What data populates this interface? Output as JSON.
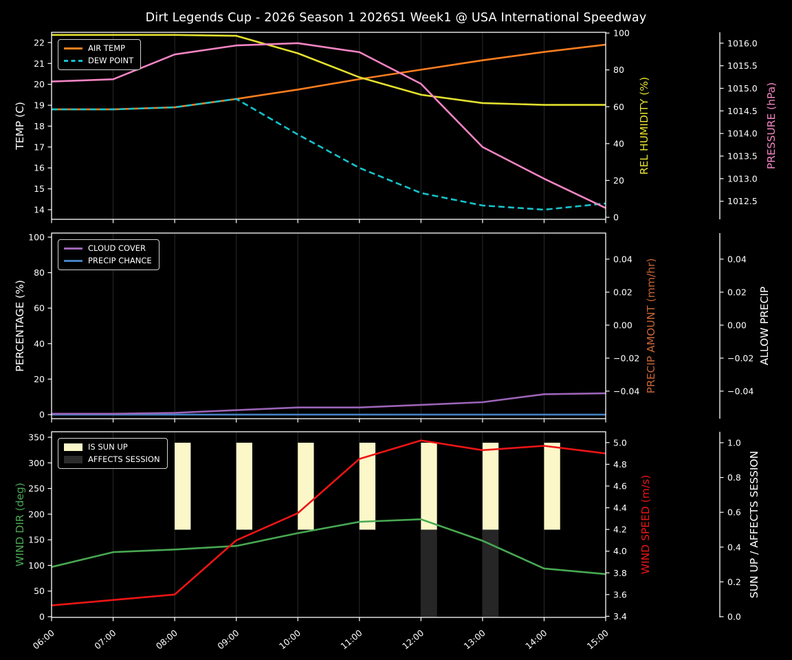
{
  "page": {
    "title": "Dirt Legends Cup - 2026 Season 1 2026S1 Week1 @ USA International Speedway",
    "background": "#000000",
    "text_color": "#ffffff",
    "gridline_color": "#2a2a2a",
    "spine_color": "#ffffff"
  },
  "x_axis": {
    "hours": [
      6,
      7,
      8,
      9,
      10,
      11,
      12,
      13,
      14,
      15
    ],
    "tick_labels": [
      "06:00",
      "07:00",
      "08:00",
      "09:00",
      "10:00",
      "11:00",
      "12:00",
      "13:00",
      "14:00",
      "15:00"
    ]
  },
  "chart_data": [
    {
      "type": "line",
      "title": "Temperature / Humidity / Pressure",
      "x": [
        6,
        7,
        8,
        9,
        10,
        11,
        12,
        13,
        14,
        15
      ],
      "x_tick_labels": [
        "06:00",
        "07:00",
        "08:00",
        "09:00",
        "10:00",
        "11:00",
        "12:00",
        "13:00",
        "14:00",
        "15:00"
      ],
      "grid": "vertical-only",
      "legend_position": "upper left",
      "axes": {
        "left": {
          "label": "TEMP (C)",
          "color": "#ffffff",
          "range": [
            13.54,
            22.49
          ],
          "tick_values": [
            14,
            15,
            16,
            17,
            18,
            19,
            20,
            21,
            22
          ],
          "tick_labels": [
            "14",
            "15",
            "16",
            "17",
            "18",
            "19",
            "20",
            "21",
            "22"
          ]
        },
        "right1": {
          "label": "REL HUMIDITY (%)",
          "color": "#e3e02f",
          "range": [
            -1.1,
            100.4
          ],
          "tick_values": [
            0,
            20,
            40,
            60,
            80,
            100
          ],
          "tick_labels": [
            "0",
            "20",
            "40",
            "60",
            "80",
            "100"
          ]
        },
        "right2": {
          "label": "PRESSURE (hPa)",
          "color": "#f584c3",
          "range": [
            1012.1,
            1016.24
          ],
          "tick_values": [
            1012.5,
            1013.0,
            1013.5,
            1014.0,
            1014.5,
            1015.0,
            1015.5,
            1016.0
          ],
          "tick_labels": [
            "1012.5",
            "1013.0",
            "1013.5",
            "1014.0",
            "1014.5",
            "1015.0",
            "1015.5",
            "1016.0"
          ]
        }
      },
      "legend": [
        {
          "label": "AIR TEMP",
          "color": "#fd7d1f",
          "dash": false
        },
        {
          "label": "DEW POINT",
          "color": "#15c3cd",
          "dash": true
        }
      ],
      "series": [
        {
          "name": "AIR TEMP",
          "axis": "left",
          "color": "#fd7d1f",
          "style": "solid",
          "values": [
            18.8,
            18.8,
            18.9,
            19.3,
            19.75,
            20.25,
            20.7,
            21.15,
            21.55,
            21.9
          ]
        },
        {
          "name": "DEW POINT",
          "axis": "left",
          "color": "#15c3cd",
          "style": "dashed",
          "values": [
            18.8,
            18.8,
            18.9,
            19.3,
            17.6,
            16.0,
            14.8,
            14.2,
            14.0,
            14.3
          ]
        },
        {
          "name": "REL HUMIDITY",
          "axis": "right1",
          "color": "#e3e02f",
          "style": "solid",
          "values": [
            99,
            99,
            99,
            98.5,
            89,
            76,
            66.5,
            62,
            61,
            61
          ]
        },
        {
          "name": "PRESSURE",
          "axis": "right2",
          "color": "#f584c3",
          "style": "solid",
          "values": [
            1015.15,
            1015.2,
            1015.75,
            1015.95,
            1016.0,
            1015.8,
            1015.1,
            1013.7,
            1013.0,
            1012.35
          ]
        }
      ]
    },
    {
      "type": "line",
      "title": "Cloud / Precipitation",
      "x": [
        6,
        7,
        8,
        9,
        10,
        11,
        12,
        13,
        14,
        15
      ],
      "x_tick_labels": [
        "06:00",
        "07:00",
        "08:00",
        "09:00",
        "10:00",
        "11:00",
        "12:00",
        "13:00",
        "14:00",
        "15:00"
      ],
      "grid": "vertical-only",
      "legend_position": "upper left",
      "axes": {
        "left": {
          "label": "PERCENTAGE (%)",
          "color": "#ffffff",
          "range": [
            -2.3,
            102.3
          ],
          "tick_values": [
            0,
            20,
            40,
            60,
            80,
            100
          ],
          "tick_labels": [
            "0",
            "20",
            "40",
            "60",
            "80",
            "100"
          ]
        },
        "right1": {
          "label": "PRECIP AMOUNT (mm/hr)",
          "color": "#c76534",
          "range": [
            -0.0567,
            0.0558
          ],
          "tick_values": [
            0.04,
            0.02,
            0.0,
            -0.02,
            -0.04
          ],
          "tick_labels": [
            "0.04",
            "0.02",
            "0.00",
            "−0.02",
            "−0.04"
          ]
        },
        "right2": {
          "label": "ALLOW PRECIP",
          "color": "#ffffff",
          "range": [
            -0.0567,
            0.0558
          ],
          "tick_values": [
            0.04,
            0.02,
            0.0,
            -0.02,
            -0.04
          ],
          "tick_labels": [
            "0.04",
            "0.02",
            "0.00",
            "−0.02",
            "−0.04"
          ]
        }
      },
      "legend": [
        {
          "label": "CLOUD COVER",
          "color": "#9c64b8",
          "dash": false
        },
        {
          "label": "PRECIP CHANCE",
          "color": "#4481c4",
          "dash": false
        }
      ],
      "series": [
        {
          "name": "PRECIP CHANCE",
          "axis": "left",
          "color": "#4481c4",
          "style": "solid",
          "values": [
            0,
            0,
            0,
            0,
            0,
            0,
            0,
            0,
            0,
            0
          ]
        },
        {
          "name": "CLOUD COVER",
          "axis": "left",
          "color": "#9c64b8",
          "style": "solid",
          "values": [
            0.5,
            0.5,
            1.0,
            2.5,
            4.0,
            4.0,
            5.5,
            7.0,
            11.5,
            12.0
          ]
        }
      ]
    },
    {
      "type": "line",
      "title": "Wind / Sun",
      "x": [
        6,
        7,
        8,
        9,
        10,
        11,
        12,
        13,
        14,
        15
      ],
      "x_tick_labels": [
        "06:00",
        "07:00",
        "08:00",
        "09:00",
        "10:00",
        "11:00",
        "12:00",
        "13:00",
        "14:00",
        "15:00"
      ],
      "grid": "vertical-only",
      "legend_position": "upper left",
      "axes": {
        "left": {
          "label": "WIND DIR (deg)",
          "color": "#48a852",
          "range": [
            -1.3,
            360.7
          ],
          "tick_values": [
            0,
            50,
            100,
            150,
            200,
            250,
            300,
            350
          ],
          "tick_labels": [
            "0",
            "50",
            "100",
            "150",
            "200",
            "250",
            "300",
            "350"
          ]
        },
        "right1": {
          "label": "WIND SPEED (m/s)",
          "color": "#ee1515",
          "range": [
            3.39,
            5.1
          ],
          "tick_values": [
            3.4,
            3.6,
            3.8,
            4.0,
            4.2,
            4.4,
            4.6,
            4.8,
            5.0
          ],
          "tick_labels": [
            "3.4",
            "3.6",
            "3.8",
            "4.0",
            "4.2",
            "4.4",
            "4.6",
            "4.8",
            "5.0"
          ]
        },
        "right2": {
          "label": "SUN UP / AFFECTS SESSION",
          "color": "#ffffff",
          "range": [
            -0.004,
            1.063
          ],
          "tick_values": [
            0.0,
            0.2,
            0.4,
            0.6,
            0.8,
            1.0
          ],
          "tick_labels": [
            "0.0",
            "0.2",
            "0.4",
            "0.6",
            "0.8",
            "1.0"
          ]
        }
      },
      "legend": [
        {
          "label": "IS SUN UP",
          "color": "#fbf7c8",
          "type": "rect"
        },
        {
          "label": "AFFECTS SESSION",
          "color": "#2b2b2b",
          "type": "rect"
        }
      ],
      "bars": [
        {
          "name": "IS SUN UP",
          "axis": "right2",
          "color": "#fbf7c8",
          "hours": [
            8,
            9,
            10,
            11,
            12,
            13,
            14
          ],
          "from": 0.5,
          "to": 1.0,
          "width_hours": 0.26
        },
        {
          "name": "AFFECTS SESSION",
          "axis": "right2",
          "color": "#262626",
          "hours": [
            12,
            13
          ],
          "from": 0.0,
          "to": 0.5,
          "width_hours": 0.26
        }
      ],
      "series": [
        {
          "name": "WIND DIR",
          "axis": "left",
          "color": "#48a852",
          "style": "solid",
          "values": [
            97,
            126,
            131,
            138,
            163,
            185,
            190,
            148,
            94,
            83
          ]
        },
        {
          "name": "WIND SPEED",
          "axis": "right1",
          "color": "#ee1515",
          "style": "solid",
          "values": [
            3.5,
            3.55,
            3.6,
            4.1,
            4.35,
            4.85,
            5.02,
            4.93,
            4.97,
            4.9
          ]
        }
      ]
    }
  ]
}
